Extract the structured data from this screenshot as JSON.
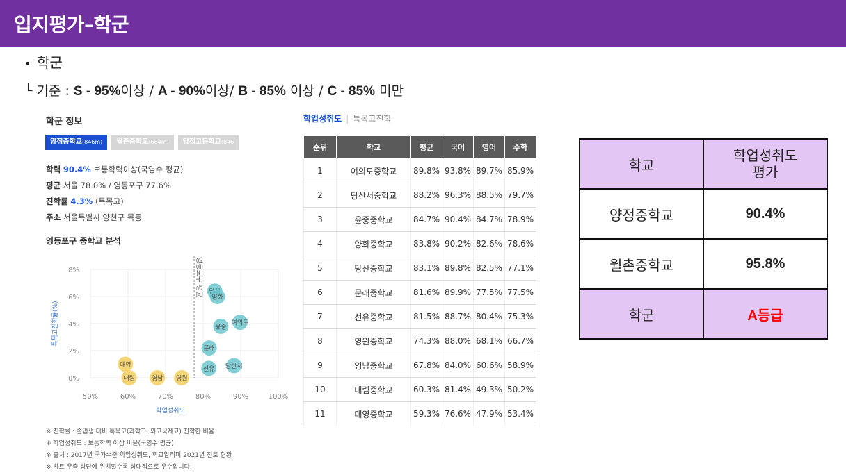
{
  "header": {
    "title": "입지평가–학군"
  },
  "bullet": {
    "dot": "•",
    "text": "학군"
  },
  "criteria": {
    "prefix": "└ 기준 : ",
    "s": "S - 95%",
    "s_suffix": "이상 / ",
    "a": "A - 90%",
    "a_suffix": "이상/ ",
    "b": "B - 85%",
    "b_suffix": " 이상 / ",
    "c": "C - 85%",
    "c_suffix": " 미만"
  },
  "panel": {
    "title": "학군 정보",
    "tabs": [
      {
        "name": "양정중학교",
        "dist": "(846m)"
      },
      {
        "name": "월촌중학교",
        "dist": "(684m)"
      },
      {
        "name": "양정고등학교",
        "dist": "(846"
      }
    ],
    "info": {
      "achievement_label": "학력",
      "achievement_value": "90.4%",
      "achievement_rest": " 보통학력이상(국영수 평균)",
      "avg_label": "평균",
      "avg_rest": " 서울 78.0% / 영등포구 77.6%",
      "advance_label": "진학률",
      "advance_value": "4.3%",
      "advance_rest": " (특목고)",
      "addr_label": "주소",
      "addr_rest": " 서울특별시 양천구 목동"
    },
    "analysis_title": "영등포구 중학교 분석",
    "footnotes": [
      "※ 진학률 : 졸업생 대비 특목고(과학고, 외고국제고) 진학한 비율",
      "※ 학업성취도 : 보통학력 이상 비율(국영수 평균)",
      "※ 출처 : 2017년 국가수준 학업성취도, 학교알리미 2021년 진로 현황",
      "※ 차트 우측 상단에 위치할수록 상대적으로 우수합니다."
    ]
  },
  "chart_data": {
    "type": "scatter",
    "xlabel": "학업성취도",
    "ylabel": "특목고진학률(%)",
    "xlim": [
      50,
      100
    ],
    "ylim": [
      0,
      8
    ],
    "x_ticks": [
      "50%",
      "60%",
      "70%",
      "80%",
      "90%",
      "100%"
    ],
    "y_ticks": [
      "0%",
      "2%",
      "4%",
      "6%",
      "8%"
    ],
    "avg_line_label": "영등포구 평균",
    "avg_line_x": 77.6,
    "grid": true,
    "points": [
      {
        "label": "대영",
        "x": 59.3,
        "y": 1.0,
        "color": "#f5cf5c"
      },
      {
        "label": "대림",
        "x": 60.3,
        "y": 0.0,
        "color": "#f5cf5c"
      },
      {
        "label": "영남",
        "x": 67.8,
        "y": 0.0,
        "color": "#f5cf5c"
      },
      {
        "label": "영원",
        "x": 74.3,
        "y": 0.0,
        "color": "#f5cf5c"
      },
      {
        "label": "문래",
        "x": 81.6,
        "y": 2.2,
        "color": "#6cc7cf"
      },
      {
        "label": "선유",
        "x": 81.5,
        "y": 0.7,
        "color": "#6cc7cf"
      },
      {
        "label": "당산서",
        "x": 88.2,
        "y": 0.9,
        "color": "#6cc7cf"
      },
      {
        "label": "윤중",
        "x": 84.7,
        "y": 3.8,
        "color": "#6cc7cf"
      },
      {
        "label": "여의도",
        "x": 89.8,
        "y": 4.1,
        "color": "#6cc7cf"
      },
      {
        "label": "당산",
        "x": 83.1,
        "y": 6.4,
        "color": "#6cc7cf"
      },
      {
        "label": "양화",
        "x": 83.8,
        "y": 6.0,
        "color": "#6cc7cf"
      }
    ]
  },
  "rank_table": {
    "tabs": {
      "active": "학업성취도",
      "sep": "|",
      "inactive": "특목고진학"
    },
    "headers": [
      "순위",
      "학교",
      "평균",
      "국어",
      "영어",
      "수학"
    ],
    "rows": [
      [
        "1",
        "여의도중학교",
        "89.8%",
        "93.8%",
        "89.7%",
        "85.9%"
      ],
      [
        "2",
        "당산서중학교",
        "88.2%",
        "96.3%",
        "88.5%",
        "79.7%"
      ],
      [
        "3",
        "윤중중학교",
        "84.7%",
        "90.4%",
        "84.7%",
        "78.9%"
      ],
      [
        "4",
        "양화중학교",
        "83.8%",
        "90.2%",
        "82.6%",
        "78.6%"
      ],
      [
        "5",
        "당산중학교",
        "83.1%",
        "89.8%",
        "82.5%",
        "77.1%"
      ],
      [
        "6",
        "문래중학교",
        "81.6%",
        "89.9%",
        "77.5%",
        "77.5%"
      ],
      [
        "7",
        "선유중학교",
        "81.5%",
        "88.7%",
        "80.4%",
        "75.3%"
      ],
      [
        "8",
        "영원중학교",
        "74.3%",
        "88.0%",
        "68.1%",
        "66.7%"
      ],
      [
        "9",
        "영남중학교",
        "67.8%",
        "84.0%",
        "60.6%",
        "58.9%"
      ],
      [
        "10",
        "대림중학교",
        "60.3%",
        "81.4%",
        "49.3%",
        "50.2%"
      ],
      [
        "11",
        "대영중학교",
        "59.3%",
        "76.6%",
        "47.9%",
        "53.4%"
      ]
    ]
  },
  "summary": {
    "h_school": "학교",
    "h_eval": "학업성취도\n평가",
    "row1_school": "양정중학교",
    "row1_value": "90.4%",
    "row2_school": "월촌중학교",
    "row2_value": "95.8%",
    "row3_school": "학군",
    "row3_value": "A등급"
  },
  "colors": {
    "header_bg": "#7030a0",
    "lavender": "#e3c6f3",
    "grade_red": "#ff0000",
    "tab_blue": "#1a4fd1"
  }
}
